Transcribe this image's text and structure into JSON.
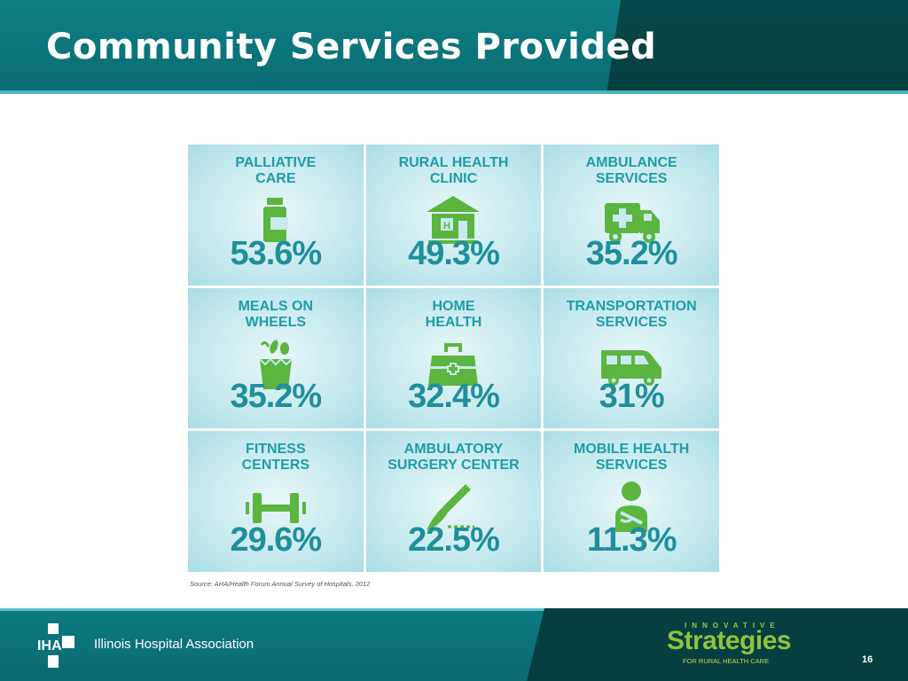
{
  "slide": {
    "title": "Community Services Provided",
    "page_number": "16",
    "source": "Source: AHA/Health Forum Annual Survey of Hospitals, 2012"
  },
  "cells": [
    {
      "label": "PALLIATIVE\nCARE",
      "value": "53.6%",
      "icon": "medicine-bottle-icon"
    },
    {
      "label": "RURAL HEALTH\nCLINIC",
      "value": "49.3%",
      "icon": "clinic-building-icon"
    },
    {
      "label": "AMBULANCE\nSERVICES",
      "value": "35.2%",
      "icon": "ambulance-icon"
    },
    {
      "label": "MEALS ON\nWHEELS",
      "value": "35.2%",
      "icon": "grocery-bag-icon"
    },
    {
      "label": "HOME\nHEALTH",
      "value": "32.4%",
      "icon": "medical-bag-icon"
    },
    {
      "label": "TRANSPORTATION\nSERVICES",
      "value": "31%",
      "icon": "van-icon"
    },
    {
      "label": "FITNESS\nCENTERS",
      "value": "29.6%",
      "icon": "dumbbell-icon"
    },
    {
      "label": "AMBULATORY\nSURGERY CENTER",
      "value": "22.5%",
      "icon": "scalpel-icon"
    },
    {
      "label": "MOBILE HEALTH\nSERVICES",
      "value": "11.3%",
      "icon": "patient-sling-icon"
    }
  ],
  "footer": {
    "org_name": "Illinois Hospital Association",
    "logo_text": "IHA",
    "brand_top": "INNOVATIVE",
    "brand_main": "Strategies",
    "brand_sub": "FOR RURAL HEALTH CARE"
  },
  "colors": {
    "header": "#0a6c72",
    "accent_text": "#1f9ca8",
    "icon_green": "#5bb53f",
    "brand_green": "#8fc33e"
  }
}
